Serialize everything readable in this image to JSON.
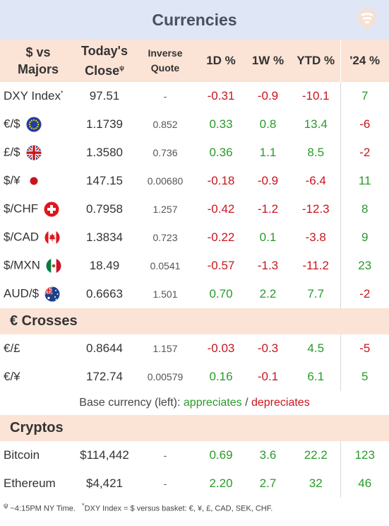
{
  "title": "Currencies",
  "headers": {
    "pair_line1": "$ vs",
    "pair_line2": "Majors",
    "close_line1": "Today's",
    "close_line2": "Close",
    "close_mark": "ψ",
    "inverse_line1": "Inverse",
    "inverse_line2": "Quote",
    "d1": "1D %",
    "w1": "1W %",
    "ytd": "YTD %",
    "y24": "'24 %"
  },
  "majors": [
    {
      "name": "DXY Index",
      "mark": "*",
      "flag": "",
      "close": "97.51",
      "inverse": "-",
      "d1": "-0.31",
      "w1": "-0.9",
      "ytd": "-10.1",
      "y24": "7"
    },
    {
      "name": "€/$",
      "mark": "",
      "flag": "eu-flag-icon",
      "close": "1.1739",
      "inverse": "0.852",
      "d1": "0.33",
      "w1": "0.8",
      "ytd": "13.4",
      "y24": "-6"
    },
    {
      "name": "£/$",
      "mark": "",
      "flag": "uk-flag-icon",
      "close": "1.3580",
      "inverse": "0.736",
      "d1": "0.36",
      "w1": "1.1",
      "ytd": "8.5",
      "y24": "-2"
    },
    {
      "name": "$/¥",
      "mark": "",
      "flag": "japan-flag-icon",
      "close": "147.15",
      "inverse": "0.00680",
      "d1": "-0.18",
      "w1": "-0.9",
      "ytd": "-6.4",
      "y24": "11"
    },
    {
      "name": "$/CHF",
      "mark": "",
      "flag": "swiss-flag-icon",
      "close": "0.7958",
      "inverse": "1.257",
      "d1": "-0.42",
      "w1": "-1.2",
      "ytd": "-12.3",
      "y24": "8"
    },
    {
      "name": "$/CAD",
      "mark": "",
      "flag": "canada-flag-icon",
      "close": "1.3834",
      "inverse": "0.723",
      "d1": "-0.22",
      "w1": "0.1",
      "ytd": "-3.8",
      "y24": "9"
    },
    {
      "name": "$/MXN",
      "mark": "",
      "flag": "mexico-flag-icon",
      "close": "18.49",
      "inverse": "0.0541",
      "d1": "-0.57",
      "w1": "-1.3",
      "ytd": "-11.2",
      "y24": "23"
    },
    {
      "name": "AUD/$",
      "mark": "",
      "flag": "australia-flag-icon",
      "close": "0.6663",
      "inverse": "1.501",
      "d1": "0.70",
      "w1": "2.2",
      "ytd": "7.7",
      "y24": "-2"
    }
  ],
  "crosses_title": "€ Crosses",
  "crosses": [
    {
      "name": "€/£",
      "close": "0.8644",
      "inverse": "1.157",
      "d1": "-0.03",
      "w1": "-0.3",
      "ytd": "4.5",
      "y24": "-5"
    },
    {
      "name": "€/¥",
      "close": "172.74",
      "inverse": "0.00579",
      "d1": "0.16",
      "w1": "-0.1",
      "ytd": "6.1",
      "y24": "5"
    }
  ],
  "legend": {
    "prefix": "Base currency (left):",
    "appreciates": "appreciates",
    "separator": "/",
    "depreciates": "depreciates"
  },
  "cryptos_title": "Cryptos",
  "cryptos": [
    {
      "name": "Bitcoin",
      "close": "$114,442",
      "inverse": "-",
      "d1": "0.69",
      "w1": "3.6",
      "ytd": "22.2",
      "y24": "123"
    },
    {
      "name": "Ethereum",
      "close": "$4,421",
      "inverse": "-",
      "d1": "2.20",
      "w1": "2.7",
      "ytd": "32",
      "y24": "46"
    }
  ],
  "footer": {
    "mark1": "ψ",
    "note1": "~4:15PM NY Time.",
    "mark2": "*",
    "note2": "DXY Index = $ versus basket: €, ¥, £, CAD, SEK, CHF."
  },
  "colors": {
    "positive": "#2a9a2a",
    "negative": "#c8161d",
    "title_bg": "#dfe6f6",
    "header_bg": "#fbe3d6"
  }
}
